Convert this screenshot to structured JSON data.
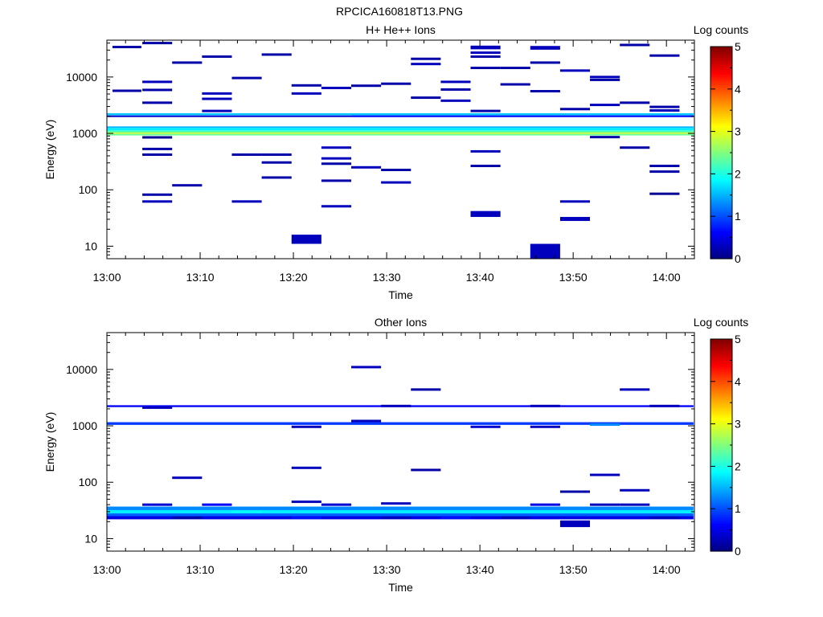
{
  "figure_title": "RPCICA160818T13.PNG",
  "colorbar": {
    "label": "Log counts",
    "ticks": [
      "0",
      "1",
      "2",
      "3",
      "4",
      "5"
    ],
    "range": [
      0,
      5
    ],
    "colormap": "jet"
  },
  "chart_data": [
    {
      "type": "heatmap",
      "title": "H+ He++ Ions",
      "xlabel": "Time",
      "ylabel": "Energy (eV)",
      "xlim": [
        "13:00",
        "14:03"
      ],
      "ylim": [
        6,
        45000
      ],
      "yscale": "log",
      "xticks": [
        "13:00",
        "13:10",
        "13:20",
        "13:30",
        "13:40",
        "13:50",
        "14:00"
      ],
      "yticks": [
        "10",
        "100",
        "1000",
        "10000"
      ],
      "value_label": "Log counts",
      "bands": [
        {
          "t0": 0,
          "t1": 62.9,
          "e0": 920,
          "e1": 980,
          "v": 2.4
        },
        {
          "t0": 0,
          "t1": 62.9,
          "e0": 980,
          "e1": 1050,
          "v": 2.8
        },
        {
          "t0": 0,
          "t1": 62.9,
          "e0": 1050,
          "e1": 1130,
          "v": 2.2
        },
        {
          "t0": 0,
          "t1": 62.9,
          "e0": 1130,
          "e1": 1250,
          "v": 1.8
        },
        {
          "t0": 0,
          "t1": 62.9,
          "e0": 1250,
          "e1": 1330,
          "v": 1.5
        },
        {
          "t0": 0,
          "t1": 62.9,
          "e0": 1950,
          "e1": 2080,
          "v": 0.4
        },
        {
          "t0": 0,
          "t1": 62.9,
          "e0": 2100,
          "e1": 2280,
          "v": 1.6
        },
        {
          "t0": 26.3,
          "t1": 62.9,
          "e0": 1950,
          "e1": 2080,
          "v": 0.7
        }
      ],
      "cells": [
        {
          "t0": 0.6,
          "t1": 3.7,
          "e": 34000,
          "v": 0.2
        },
        {
          "t0": 0.6,
          "t1": 3.7,
          "e": 5700,
          "v": 0.2
        },
        {
          "t0": 3.8,
          "t1": 7.0,
          "e": 40000,
          "v": 0.2
        },
        {
          "t0": 3.8,
          "t1": 7.0,
          "e": 8200,
          "v": 0.3
        },
        {
          "t0": 3.8,
          "t1": 7.0,
          "e": 5900,
          "v": 0.2
        },
        {
          "t0": 3.8,
          "t1": 7.0,
          "e": 3500,
          "v": 0.2
        },
        {
          "t0": 3.8,
          "t1": 7.0,
          "e": 850,
          "v": 0.1
        },
        {
          "t0": 3.8,
          "t1": 7.0,
          "e": 530,
          "v": 0.2
        },
        {
          "t0": 3.8,
          "t1": 7.0,
          "e": 420,
          "v": 0.2
        },
        {
          "t0": 3.8,
          "t1": 7.0,
          "e": 82,
          "v": 0.2
        },
        {
          "t0": 3.8,
          "t1": 7.0,
          "e": 62,
          "v": 0.3
        },
        {
          "t0": 7.0,
          "t1": 10.2,
          "e": 18000,
          "v": 0.2
        },
        {
          "t0": 7.0,
          "t1": 10.2,
          "e": 120,
          "v": 0.2
        },
        {
          "t0": 10.2,
          "t1": 13.4,
          "e": 23000,
          "v": 0.2
        },
        {
          "t0": 10.2,
          "t1": 13.4,
          "e": 5100,
          "v": 0.3
        },
        {
          "t0": 10.2,
          "t1": 13.4,
          "e": 4100,
          "v": 0.3
        },
        {
          "t0": 10.2,
          "t1": 13.4,
          "e": 2500,
          "v": 0.3
        },
        {
          "t0": 13.4,
          "t1": 16.6,
          "e": 9600,
          "v": 0.2
        },
        {
          "t0": 13.4,
          "t1": 16.6,
          "e": 420,
          "v": 0.2
        },
        {
          "t0": 13.4,
          "t1": 16.6,
          "e": 62,
          "v": 0.3
        },
        {
          "t0": 16.6,
          "t1": 19.8,
          "e": 25000,
          "v": 0.2
        },
        {
          "t0": 16.6,
          "t1": 19.8,
          "e": 420,
          "v": 0.2
        },
        {
          "t0": 16.6,
          "t1": 19.8,
          "e": 305,
          "v": 0.2
        },
        {
          "t0": 16.6,
          "t1": 19.8,
          "e": 165,
          "v": 0.2
        },
        {
          "t0": 19.8,
          "t1": 23.0,
          "e": 7100,
          "v": 0.2
        },
        {
          "t0": 19.8,
          "t1": 23.0,
          "e": 5100,
          "v": 0.3
        },
        {
          "t0": 19.8,
          "t1": 23.0,
          "e": 13,
          "v": 0.3,
          "e0": 11,
          "e1": 16
        },
        {
          "t0": 23.0,
          "t1": 26.2,
          "e": 6400,
          "v": 0.3
        },
        {
          "t0": 23.0,
          "t1": 26.2,
          "e": 560,
          "v": 0.3
        },
        {
          "t0": 23.0,
          "t1": 26.2,
          "e": 360,
          "v": 0.3
        },
        {
          "t0": 23.0,
          "t1": 26.2,
          "e": 290,
          "v": 0.2
        },
        {
          "t0": 23.0,
          "t1": 26.2,
          "e": 145,
          "v": 0.2
        },
        {
          "t0": 23.0,
          "t1": 26.2,
          "e": 51,
          "v": 0.3
        },
        {
          "t0": 26.2,
          "t1": 29.4,
          "e": 7000,
          "v": 0.2
        },
        {
          "t0": 26.2,
          "t1": 29.4,
          "e": 250,
          "v": 0.3
        },
        {
          "t0": 29.4,
          "t1": 32.6,
          "e": 7600,
          "v": 0.2
        },
        {
          "t0": 29.4,
          "t1": 32.6,
          "e": 225,
          "v": 0.2
        },
        {
          "t0": 29.4,
          "t1": 32.6,
          "e": 135,
          "v": 0.3
        },
        {
          "t0": 32.6,
          "t1": 35.8,
          "e": 21000,
          "v": 0.2
        },
        {
          "t0": 32.6,
          "t1": 35.8,
          "e": 17000,
          "v": 0.3
        },
        {
          "t0": 32.6,
          "t1": 35.8,
          "e": 4300,
          "v": 0.2
        },
        {
          "t0": 35.8,
          "t1": 39.0,
          "e": 8200,
          "v": 0.3
        },
        {
          "t0": 35.8,
          "t1": 39.0,
          "e": 6000,
          "v": 0.2
        },
        {
          "t0": 35.8,
          "t1": 39.0,
          "e": 3800,
          "v": 0.3
        },
        {
          "t0": 39.0,
          "t1": 42.2,
          "e": 33000,
          "v": 0.3,
          "e0": 31000,
          "e1": 36000
        },
        {
          "t0": 39.0,
          "t1": 42.2,
          "e": 27000,
          "v": 0.3
        },
        {
          "t0": 39.0,
          "t1": 42.2,
          "e": 23000,
          "v": 0.2
        },
        {
          "t0": 39.0,
          "t1": 42.2,
          "e": 14500,
          "v": 0.2
        },
        {
          "t0": 39.0,
          "t1": 42.2,
          "e": 2500,
          "v": 0.2
        },
        {
          "t0": 39.0,
          "t1": 42.2,
          "e": 480,
          "v": 0.3
        },
        {
          "t0": 39.0,
          "t1": 42.2,
          "e": 265,
          "v": 0.2
        },
        {
          "t0": 39.0,
          "t1": 42.2,
          "e": 37,
          "v": 0.3,
          "e0": 33,
          "e1": 42
        },
        {
          "t0": 42.2,
          "t1": 45.4,
          "e": 14500,
          "v": 0.2
        },
        {
          "t0": 42.2,
          "t1": 45.4,
          "e": 7400,
          "v": 0.2
        },
        {
          "t0": 45.4,
          "t1": 48.6,
          "e": 33000,
          "v": 0.3,
          "e0": 30500,
          "e1": 35500
        },
        {
          "t0": 45.4,
          "t1": 48.6,
          "e": 18000,
          "v": 0.2
        },
        {
          "t0": 45.4,
          "t1": 48.6,
          "e": 5600,
          "v": 0.2
        },
        {
          "t0": 45.4,
          "t1": 48.6,
          "e": 8,
          "v": 0.3,
          "e0": 6,
          "e1": 11
        },
        {
          "t0": 48.6,
          "t1": 51.8,
          "e": 13000,
          "v": 0.3
        },
        {
          "t0": 48.6,
          "t1": 51.8,
          "e": 2700,
          "v": 0.2
        },
        {
          "t0": 48.6,
          "t1": 51.8,
          "e": 62,
          "v": 0.3
        },
        {
          "t0": 48.6,
          "t1": 51.8,
          "e": 30,
          "v": 0.3,
          "e0": 28,
          "e1": 33
        },
        {
          "t0": 51.8,
          "t1": 55.0,
          "e": 10000,
          "v": 0.3
        },
        {
          "t0": 51.8,
          "t1": 55.0,
          "e": 8900,
          "v": 0.2
        },
        {
          "t0": 51.8,
          "t1": 55.0,
          "e": 3200,
          "v": 0.3
        },
        {
          "t0": 51.8,
          "t1": 55.0,
          "e": 860,
          "v": 0.2
        },
        {
          "t0": 55.0,
          "t1": 58.2,
          "e": 37000,
          "v": 0.2
        },
        {
          "t0": 55.0,
          "t1": 58.2,
          "e": 3500,
          "v": 0.2
        },
        {
          "t0": 55.0,
          "t1": 58.2,
          "e": 560,
          "v": 0.2
        },
        {
          "t0": 58.2,
          "t1": 61.4,
          "e": 24000,
          "v": 0.2
        },
        {
          "t0": 58.2,
          "t1": 61.4,
          "e": 2950,
          "v": 0.2
        },
        {
          "t0": 58.2,
          "t1": 61.4,
          "e": 2550,
          "v": 0.3
        },
        {
          "t0": 58.2,
          "t1": 61.4,
          "e": 265,
          "v": 0.2
        },
        {
          "t0": 58.2,
          "t1": 61.4,
          "e": 210,
          "v": 0.2
        },
        {
          "t0": 58.2,
          "t1": 61.4,
          "e": 85,
          "v": 0.1
        }
      ]
    },
    {
      "type": "heatmap",
      "title": "Other Ions",
      "xlabel": "Time",
      "ylabel": "Energy (eV)",
      "xlim": [
        "13:00",
        "14:03"
      ],
      "ylim": [
        6,
        45000
      ],
      "yscale": "log",
      "xticks": [
        "13:00",
        "13:10",
        "13:20",
        "13:30",
        "13:40",
        "13:50",
        "14:00"
      ],
      "yticks": [
        "10",
        "100",
        "1000",
        "10000"
      ],
      "value_label": "Log counts",
      "bands": [
        {
          "t0": 0,
          "t1": 62.9,
          "e0": 1040,
          "e1": 1160,
          "v": 0.9
        },
        {
          "t0": 0,
          "t1": 62.9,
          "e0": 2150,
          "e1": 2320,
          "v": 0.6
        },
        {
          "t0": 0,
          "t1": 62.9,
          "e0": 32,
          "e1": 37,
          "v": 1.3
        },
        {
          "t0": 0,
          "t1": 62.9,
          "e0": 28,
          "e1": 32,
          "v": 1.8
        },
        {
          "t0": 0,
          "t1": 62.9,
          "e0": 25,
          "e1": 28,
          "v": 1.1
        },
        {
          "t0": 0,
          "t1": 62.9,
          "e0": 22,
          "e1": 25,
          "v": 0.5
        }
      ],
      "cells": [
        {
          "t0": 3.8,
          "t1": 7.0,
          "e": 2100,
          "v": 0.3
        },
        {
          "t0": 3.8,
          "t1": 7.0,
          "e": 40,
          "v": 0.4
        },
        {
          "t0": 7.0,
          "t1": 10.2,
          "e": 120,
          "v": 0.3
        },
        {
          "t0": 7.0,
          "t1": 10.2,
          "e": 23.5,
          "v": 0.2
        },
        {
          "t0": 10.2,
          "t1": 13.4,
          "e": 40,
          "v": 0.6
        },
        {
          "t0": 13.4,
          "t1": 16.6,
          "e": 30,
          "v": 1.9
        },
        {
          "t0": 19.8,
          "t1": 23.0,
          "e": 960,
          "v": 0.3
        },
        {
          "t0": 19.8,
          "t1": 23.0,
          "e": 180,
          "v": 0.3
        },
        {
          "t0": 19.8,
          "t1": 23.0,
          "e": 45,
          "v": 0.3
        },
        {
          "t0": 19.8,
          "t1": 23.0,
          "e": 23.5,
          "v": 0.7
        },
        {
          "t0": 23.0,
          "t1": 26.2,
          "e": 40,
          "v": 0.4
        },
        {
          "t0": 26.2,
          "t1": 29.4,
          "e": 11000,
          "v": 0.3
        },
        {
          "t0": 26.2,
          "t1": 29.4,
          "e": 1220,
          "v": 0.3
        },
        {
          "t0": 29.4,
          "t1": 32.6,
          "e": 2250,
          "v": 0.3
        },
        {
          "t0": 29.4,
          "t1": 32.6,
          "e": 42,
          "v": 0.3
        },
        {
          "t0": 29.4,
          "t1": 32.6,
          "e": 23.5,
          "v": 0.3
        },
        {
          "t0": 32.6,
          "t1": 35.8,
          "e": 4400,
          "v": 0.2
        },
        {
          "t0": 32.6,
          "t1": 35.8,
          "e": 165,
          "v": 0.2
        },
        {
          "t0": 35.8,
          "t1": 39.0,
          "e": 23.5,
          "v": 0.7
        },
        {
          "t0": 39.0,
          "t1": 42.2,
          "e": 960,
          "v": 0.4
        },
        {
          "t0": 42.2,
          "t1": 45.4,
          "e": 23.5,
          "v": 0.3
        },
        {
          "t0": 45.4,
          "t1": 48.6,
          "e": 2250,
          "v": 0.3
        },
        {
          "t0": 45.4,
          "t1": 48.6,
          "e": 960,
          "v": 0.3
        },
        {
          "t0": 45.4,
          "t1": 48.6,
          "e": 40,
          "v": 0.5
        },
        {
          "t0": 48.6,
          "t1": 51.8,
          "e": 68,
          "v": 0.2
        },
        {
          "t0": 48.6,
          "t1": 51.8,
          "e": 18,
          "v": 0.3,
          "e0": 16,
          "e1": 21
        },
        {
          "t0": 51.8,
          "t1": 55.0,
          "e": 1050,
          "v": 1.3
        },
        {
          "t0": 51.8,
          "t1": 55.0,
          "e": 135,
          "v": 0.3
        },
        {
          "t0": 51.8,
          "t1": 55.0,
          "e": 40,
          "v": 0.3
        },
        {
          "t0": 55.0,
          "t1": 58.2,
          "e": 4400,
          "v": 0.3
        },
        {
          "t0": 55.0,
          "t1": 58.2,
          "e": 72,
          "v": 0.3
        },
        {
          "t0": 55.0,
          "t1": 58.2,
          "e": 40,
          "v": 0.3
        },
        {
          "t0": 58.2,
          "t1": 61.4,
          "e": 2250,
          "v": 0.3
        },
        {
          "t0": 58.2,
          "t1": 61.4,
          "e": 23.5,
          "v": 0.3
        }
      ]
    }
  ]
}
